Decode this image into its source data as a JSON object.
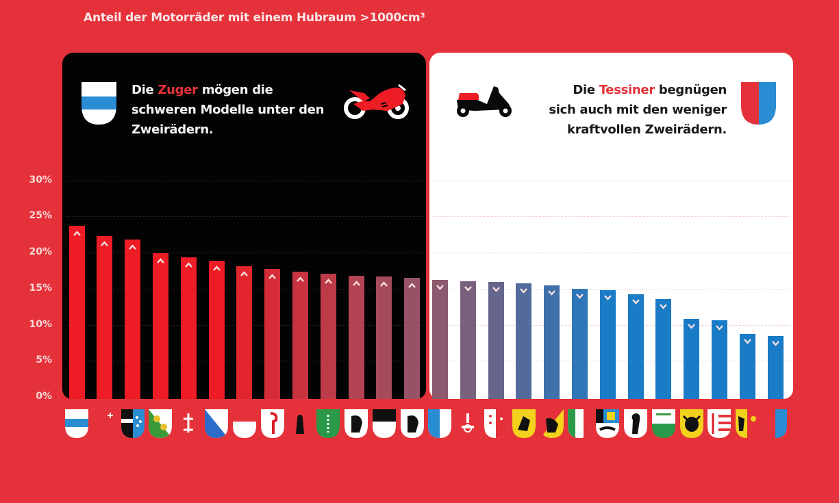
{
  "title": "Anteil der Motorräder mit einem Hubraum >1000cm³",
  "left_panel": {
    "caption_pre": "Die ",
    "caption_highlight": "Zuger",
    "caption_line1_post": " mögen die",
    "caption_line2": "schweren Modelle unter den",
    "caption_line3": "Zweirädern.",
    "canton": "Zug",
    "icon": "sport-motorcycle-icon"
  },
  "right_panel": {
    "caption_pre": "Die ",
    "caption_highlight": "Tessiner",
    "caption_line1_post": " begnügen",
    "caption_line2": "sich auch mit den weniger",
    "caption_line3": "kraftvollen Zweirädern.",
    "canton": "Tessin",
    "icon": "scooter-icon"
  },
  "colors": {
    "background": "#e5323a",
    "left_panel": "#030303",
    "right_panel": "#ffffff",
    "bar_high": "#ee1c24",
    "bar_low": "#1a7bc7",
    "highlight_text": "#e5323a"
  },
  "y_axis": {
    "ticks": [
      "30%",
      "25%",
      "20%",
      "15%",
      "10%",
      "5%",
      "0%"
    ]
  },
  "chart_data": {
    "type": "bar",
    "title": "Anteil der Motorräder mit einem Hubraum >1000cm³",
    "xlabel": "",
    "ylabel": "",
    "ylim": [
      0,
      30
    ],
    "yticks": [
      "0%",
      "5%",
      "10%",
      "15%",
      "20%",
      "25%",
      "30%"
    ],
    "grid": true,
    "legend": null,
    "categories": [
      "Zug",
      "Schwyz",
      "Aargau",
      "Thurgau",
      "Nidwalden",
      "Zürich",
      "Solothurn",
      "Basel-Landschaft",
      "Appenzell Innerrhoden",
      "St. Gallen",
      "Appenzell Ausserrhoden",
      "Freiburg",
      "Appenzell Ausserrhoden (2)",
      "Luzern",
      "Obwalden",
      "Wallis",
      "Schaffhausen",
      "Bern",
      "Neuenburg",
      "Graubünden",
      "Basel-Stadt",
      "Waadt",
      "Uri",
      "Jura",
      "Genf",
      "Tessin"
    ],
    "values": [
      24.0,
      22.6,
      22.1,
      20.2,
      19.6,
      19.1,
      18.4,
      18.0,
      17.6,
      17.3,
      17.1,
      17.0,
      16.8,
      16.5,
      16.3,
      16.2,
      16.0,
      15.7,
      15.3,
      15.1,
      14.5,
      13.8,
      11.1,
      10.9,
      9.0,
      8.7
    ],
    "annotations": [
      "Die Zuger mögen die schweren Modelle unter den Zweirädern.",
      "Die Tessiner begnügen sich auch mit den weniger kraftvollen Zweirädern."
    ]
  }
}
